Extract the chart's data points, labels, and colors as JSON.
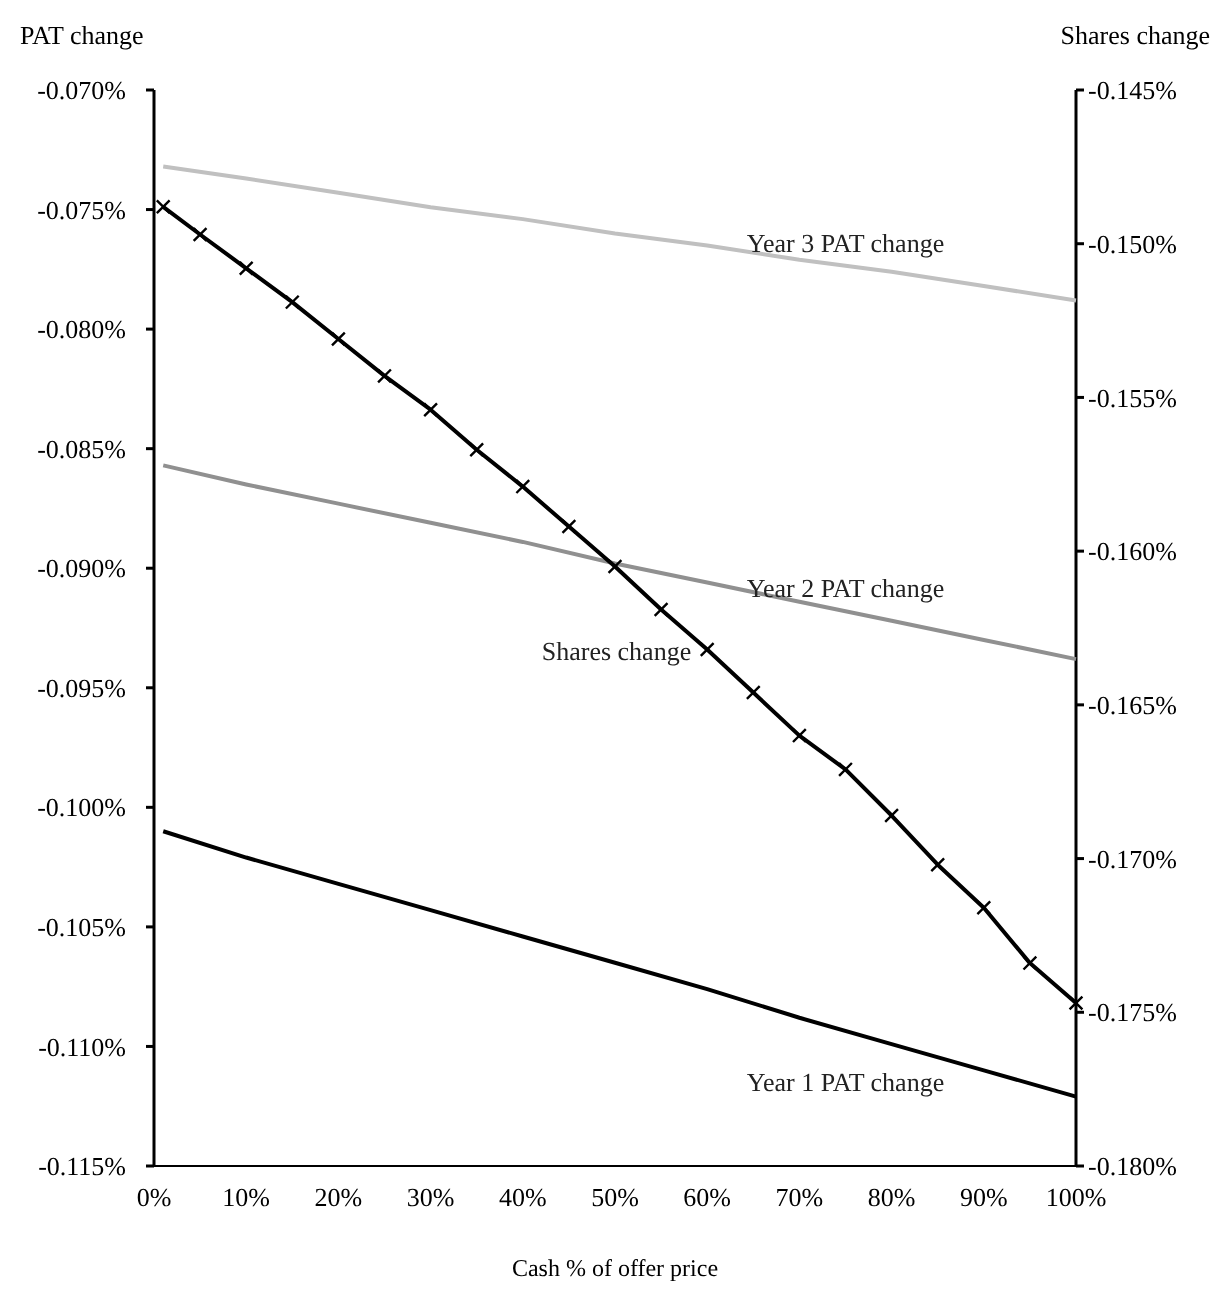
{
  "chart_data": {
    "type": "line",
    "ylabel": "PAT  change",
    "y2label": "Shares change",
    "xlabel": "Cash % of offer price",
    "xlim": [
      0,
      100
    ],
    "xticks": [
      {
        "value": 0,
        "label": "0%"
      },
      {
        "value": 10,
        "label": "10%"
      },
      {
        "value": 20,
        "label": "20%"
      },
      {
        "value": 30,
        "label": "30%"
      },
      {
        "value": 40,
        "label": "40%"
      },
      {
        "value": 50,
        "label": "50%"
      },
      {
        "value": 60,
        "label": "60%"
      },
      {
        "value": 70,
        "label": "70%"
      },
      {
        "value": 80,
        "label": "80%"
      },
      {
        "value": 90,
        "label": "90%"
      },
      {
        "value": 100,
        "label": "100%"
      }
    ],
    "ylim": [
      -0.115,
      -0.07
    ],
    "yticks": [
      {
        "value": -0.07,
        "label": "-0.070%"
      },
      {
        "value": -0.075,
        "label": "-0.075%"
      },
      {
        "value": -0.08,
        "label": "-0.080%"
      },
      {
        "value": -0.085,
        "label": "-0.085%"
      },
      {
        "value": -0.09,
        "label": "-0.090%"
      },
      {
        "value": -0.095,
        "label": "-0.095%"
      },
      {
        "value": -0.1,
        "label": "-0.100%"
      },
      {
        "value": -0.105,
        "label": "-0.105%"
      },
      {
        "value": -0.11,
        "label": "-0.110%"
      },
      {
        "value": -0.115,
        "label": "-0.115%"
      }
    ],
    "y2lim": [
      -0.18,
      -0.145
    ],
    "y2ticks": [
      {
        "value": -0.145,
        "label": "-0.145%"
      },
      {
        "value": -0.15,
        "label": "-0.150%"
      },
      {
        "value": -0.155,
        "label": "-0.155%"
      },
      {
        "value": -0.16,
        "label": "-0.160%"
      },
      {
        "value": -0.165,
        "label": "-0.165%"
      },
      {
        "value": -0.17,
        "label": "-0.170%"
      },
      {
        "value": -0.175,
        "label": "-0.175%"
      },
      {
        "value": -0.18,
        "label": "-0.180%"
      }
    ],
    "series": [
      {
        "name": "Year 3 PAT  change",
        "color": "#c0c0c0",
        "x": [
          1,
          10,
          20,
          30,
          40,
          50,
          60,
          70,
          80,
          90,
          100
        ],
        "values": [
          -0.0732,
          -0.0737,
          -0.0743,
          -0.0749,
          -0.0754,
          -0.076,
          -0.0765,
          -0.0771,
          -0.0776,
          -0.0782,
          -0.0788
        ]
      },
      {
        "name": "Year 2 PAT  change",
        "color": "#909090",
        "x": [
          1,
          10,
          20,
          30,
          40,
          50,
          60,
          70,
          80,
          90,
          100
        ],
        "values": [
          -0.0857,
          -0.0865,
          -0.0873,
          -0.0881,
          -0.0889,
          -0.0898,
          -0.0906,
          -0.0914,
          -0.0922,
          -0.093,
          -0.0938
        ]
      },
      {
        "name": "Shares change",
        "color": "#000000",
        "axis": "y2",
        "marker": "cross",
        "x": [
          1,
          5,
          10,
          15,
          20,
          25,
          30,
          35,
          40,
          45,
          50,
          55,
          60,
          65,
          70,
          75,
          80,
          85,
          90,
          95,
          100
        ],
        "values": [
          -0.1488,
          -0.1497,
          -0.1508,
          -0.1519,
          -0.1531,
          -0.1543,
          -0.1554,
          -0.1567,
          -0.1579,
          -0.1592,
          -0.1605,
          -0.1619,
          -0.1632,
          -0.1646,
          -0.166,
          -0.1671,
          -0.1686,
          -0.1702,
          -0.1716,
          -0.1734,
          -0.1747
        ]
      },
      {
        "name": "Year 1 PAT  change",
        "color": "#000000",
        "x": [
          1,
          10,
          20,
          30,
          40,
          50,
          60,
          70,
          80,
          90,
          100
        ],
        "values": [
          -0.101,
          -0.1021,
          -0.1032,
          -0.1043,
          -0.1054,
          -0.1065,
          -0.1076,
          -0.1088,
          -0.1099,
          -0.111,
          -0.1121
        ]
      }
    ]
  }
}
